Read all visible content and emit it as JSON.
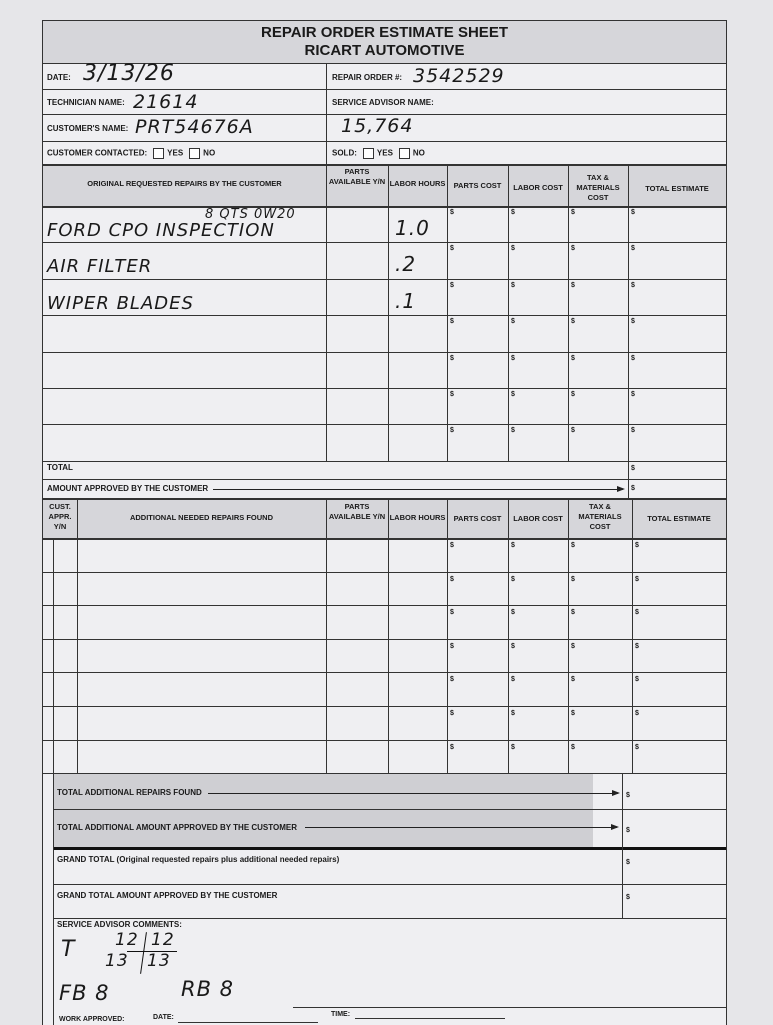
{
  "header": {
    "title": "REPAIR ORDER ESTIMATE SHEET",
    "company": "RICART AUTOMOTIVE"
  },
  "fields": {
    "date_label": "DATE:",
    "date_value": "3/13/26",
    "repair_order_label": "REPAIR ORDER #:",
    "repair_order_value": "3542529",
    "technician_label": "TECHNICIAN NAME:",
    "technician_value": "21614",
    "service_advisor_label": "SERVICE ADVISOR NAME:",
    "customer_label": "CUSTOMER'S NAME:",
    "customer_value": "PRT54676A",
    "mileage_value": "15,764",
    "contacted_label": "CUSTOMER CONTACTED:",
    "sold_label": "SOLD:",
    "yes": "YES",
    "no": "NO"
  },
  "original_table": {
    "headers": [
      "ORIGINAL REQUESTED REPAIRS BY THE CUSTOMER",
      "PARTS AVAILABLE Y/N",
      "LABOR HOURS",
      "PARTS COST",
      "LABOR COST",
      "TAX & MATERIALS COST",
      "TOTAL ESTIMATE"
    ],
    "note": "8 QTS 0W20",
    "rows": [
      {
        "repair": "FORD CPO INSPECTION",
        "hours": "1.0"
      },
      {
        "repair": "AIR FILTER",
        "hours": ".2"
      },
      {
        "repair": "WIPER BLADES",
        "hours": ".1"
      },
      {
        "repair": "",
        "hours": ""
      },
      {
        "repair": "",
        "hours": ""
      },
      {
        "repair": "",
        "hours": ""
      },
      {
        "repair": "",
        "hours": ""
      }
    ],
    "currency": "$",
    "total_label": "TOTAL",
    "approved_label": "AMOUNT APPROVED BY THE CUSTOMER"
  },
  "additional_table": {
    "headers": [
      "CUST. APPR. Y/N",
      "ADDITIONAL NEEDED REPAIRS FOUND",
      "PARTS AVAILABLE Y/N",
      "LABOR HOURS",
      "PARTS COST",
      "LABOR COST",
      "TAX & MATERIALS COST",
      "TOTAL ESTIMATE"
    ],
    "row_count": 7,
    "total_found_label": "TOTAL ADDITIONAL REPAIRS FOUND",
    "total_approved_label": "TOTAL ADDITIONAL AMOUNT APPROVED BY THE CUSTOMER"
  },
  "grand": {
    "grand_total_label": "GRAND TOTAL (Original requested repairs plus additional needed repairs)",
    "grand_approved_label": "GRAND TOTAL AMOUNT APPROVED BY THE CUSTOMER"
  },
  "comments": {
    "label": "SERVICE ADVISOR COMMENTS:",
    "t": "T",
    "top_left": "12",
    "top_right": "12",
    "bottom_left": "13",
    "bottom_right": "13",
    "fb": "FB 8",
    "rb": "RB 8"
  },
  "footer": {
    "work_approved": "WORK APPROVED:",
    "date": "DATE:",
    "time": "TIME:"
  }
}
